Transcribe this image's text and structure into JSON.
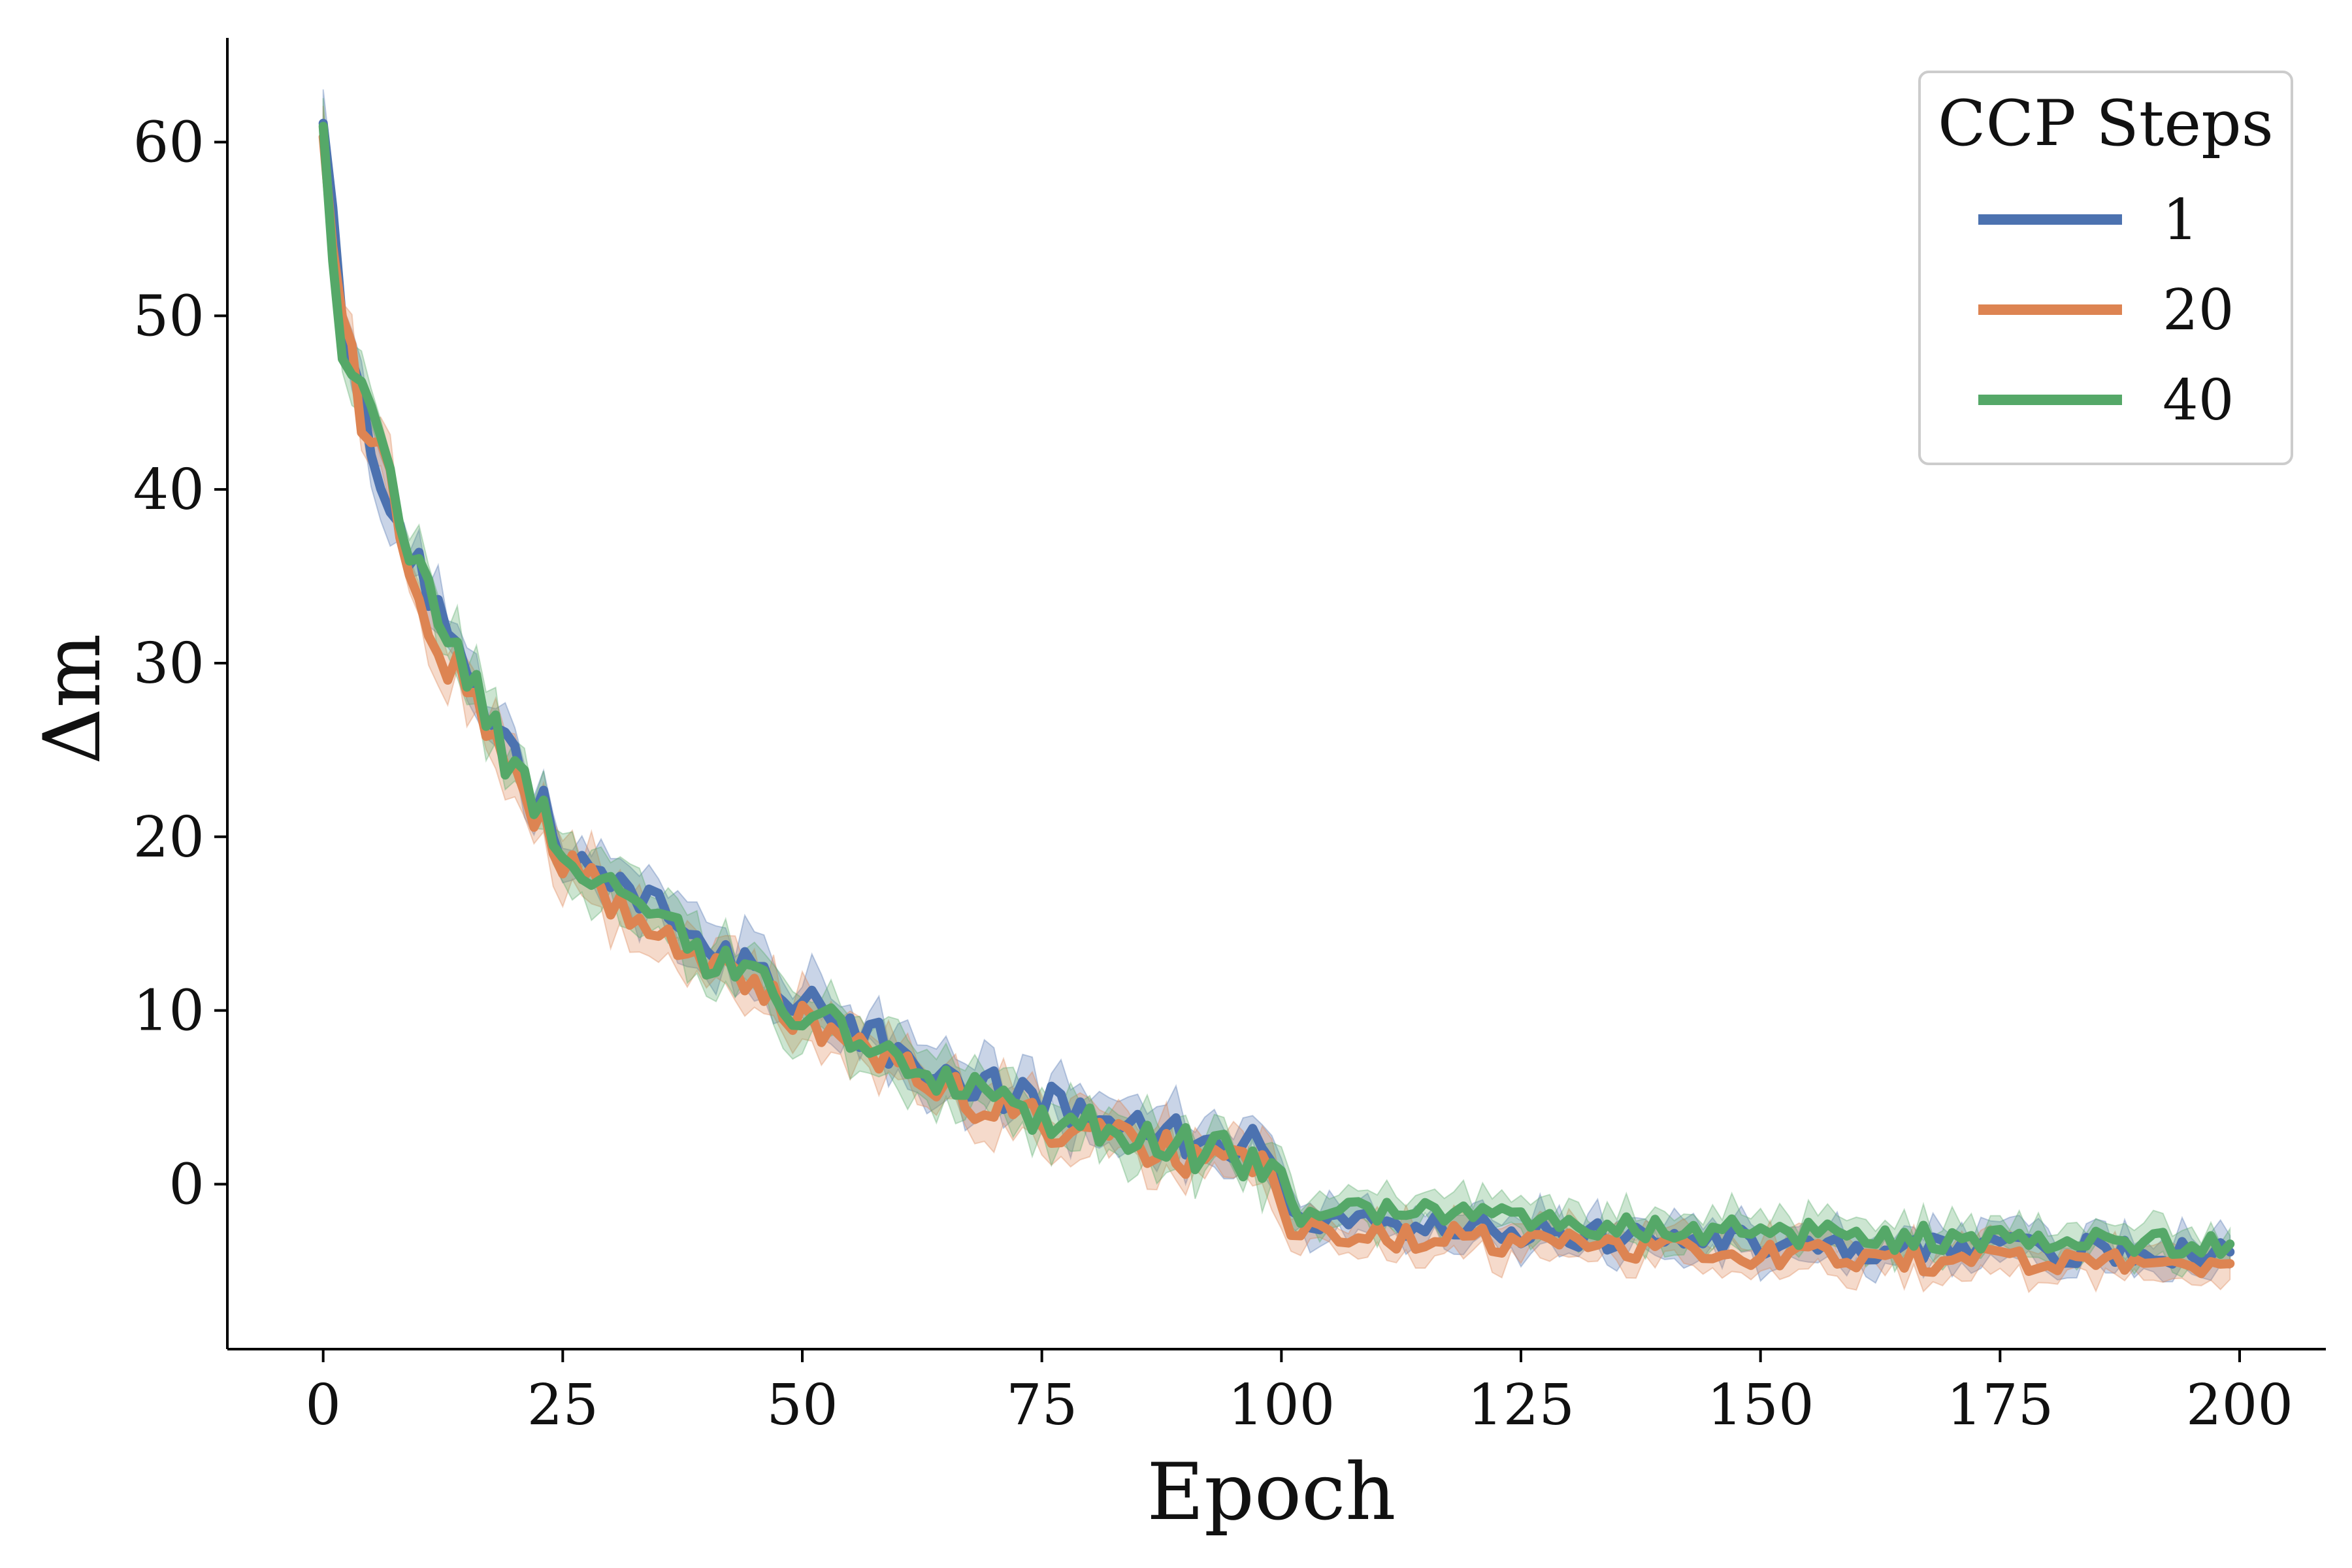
{
  "chart_data": {
    "type": "line",
    "title": "",
    "xlabel": "Epoch",
    "ylabel": "Δm",
    "xlim": [
      -10,
      209
    ],
    "ylim": [
      -9.5,
      66
    ],
    "x_ticks": [
      "0",
      "25",
      "50",
      "75",
      "100",
      "125",
      "150",
      "175",
      "200"
    ],
    "y_ticks": [
      "0",
      "10",
      "20",
      "30",
      "40",
      "50",
      "60"
    ],
    "grid": false,
    "legend": {
      "title": "CCP Steps",
      "placement": "top-right"
    },
    "series": [
      {
        "name": "1",
        "color": "#4c72b0"
      },
      {
        "name": "20",
        "color": "#dd8452"
      },
      {
        "name": "40",
        "color": "#55a868"
      }
    ],
    "trend_anchors": {
      "x": [
        0,
        2,
        5,
        8,
        10,
        13,
        16,
        20,
        25,
        30,
        35,
        40,
        45,
        50,
        55,
        60,
        65,
        70,
        75,
        80,
        85,
        90,
        95,
        99.5,
        100.5,
        110,
        120,
        130,
        140,
        150,
        160,
        170,
        180,
        190,
        199
      ],
      "y": [
        60,
        49,
        43,
        38,
        35,
        31,
        28,
        23.5,
        19,
        17,
        15,
        13,
        11.5,
        10,
        8.5,
        7,
        5.7,
        4.8,
        4.0,
        3.2,
        2.6,
        2.1,
        1.6,
        1.2,
        -1.8,
        -2.0,
        -2.3,
        -2.6,
        -2.9,
        -3.1,
        -3.3,
        -3.4,
        -3.5,
        -3.6,
        -3.8
      ]
    },
    "series_offsets": {
      "1": {
        "early": 0.6,
        "late": -0.3
      },
      "20": {
        "early": -0.4,
        "late": -0.9
      },
      "40": {
        "early": 0.0,
        "late": 0.3
      }
    },
    "band_halfwidth": {
      "early": 1.4,
      "late": 1.0
    },
    "noise_amplitude": {
      "early": 1.2,
      "late": 0.8
    },
    "epochs": 200
  }
}
